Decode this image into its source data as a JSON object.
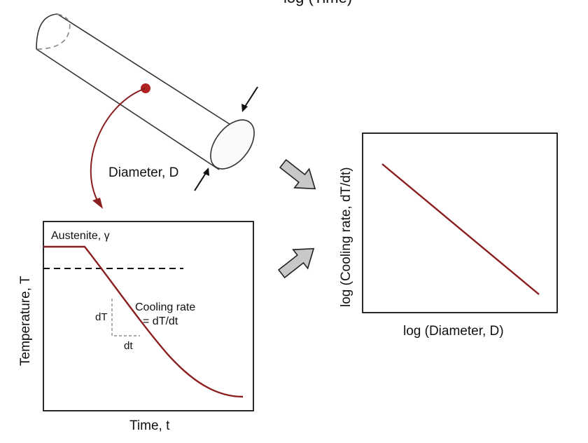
{
  "top_clipped_text": "log (Time)",
  "cylinder": {
    "diameter_label": "Diameter, D"
  },
  "cooling_plot": {
    "phase_label": "Austenite, γ",
    "y_label": "Temperature, T",
    "x_label": "Time, t",
    "dT_label": "dT",
    "dt_label": "dt",
    "rate_label_line1": "Cooling rate",
    "rate_label_line2": "= dT/dt"
  },
  "log_plot": {
    "y_label": "log  (Cooling rate, dT/dt)",
    "x_label": "log  (Diameter, D)"
  },
  "colors": {
    "curve": "#8b1e1e",
    "marker": "#b22222",
    "arrow_fill": "#c8c8c8",
    "ink": "#111111"
  }
}
